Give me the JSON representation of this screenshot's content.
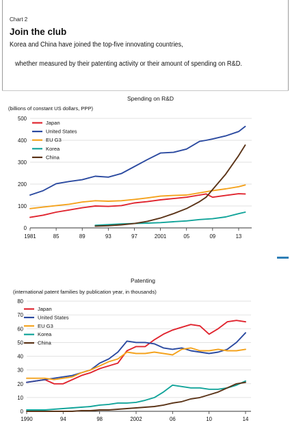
{
  "header": {
    "label": "Chart 2",
    "title": "Join the club",
    "subtitle_line1": "Korea and China have joined the top-five innovating countries,",
    "subtitle_line2": "whether measured by their patenting activity or their amount of spending on R&D."
  },
  "colors": {
    "Japan": "#e0242e",
    "United States": "#2b4aa0",
    "EU G3": "#f4a21c",
    "Korea": "#12a49a",
    "China": "#5b3418",
    "grid": "#d9d9d9",
    "axis": "#333333"
  },
  "chart_data": [
    {
      "type": "line",
      "title": "Spending on R&D",
      "ylabel": "(billions of  constant US dollars, PPP)",
      "ylim": [
        0,
        500
      ],
      "yticks": [
        "0",
        "100",
        "200",
        "300",
        "400",
        "500"
      ],
      "xlim": [
        1981,
        2015
      ],
      "xticks": [
        1981,
        1985,
        1989,
        1993,
        1997,
        2001,
        2005,
        2009,
        2013
      ],
      "xtick_labels": [
        "1981",
        "85",
        "89",
        "93",
        "97",
        "2001",
        "05",
        "09",
        "13"
      ],
      "grid": true,
      "legend": "top-left",
      "series": [
        {
          "name": "Japan",
          "x": [
            1981,
            1983,
            1985,
            1987,
            1989,
            1991,
            1993,
            1995,
            1997,
            1999,
            2001,
            2003,
            2005,
            2007,
            2008,
            2009,
            2011,
            2013,
            2014
          ],
          "y": [
            48,
            58,
            72,
            82,
            92,
            100,
            98,
            102,
            114,
            120,
            128,
            134,
            140,
            150,
            155,
            140,
            148,
            156,
            155
          ]
        },
        {
          "name": "United States",
          "x": [
            1981,
            1983,
            1985,
            1987,
            1989,
            1991,
            1993,
            1995,
            1997,
            1999,
            2001,
            2003,
            2005,
            2007,
            2008,
            2009,
            2011,
            2013,
            2014
          ],
          "y": [
            150,
            170,
            202,
            212,
            220,
            236,
            232,
            248,
            280,
            312,
            342,
            345,
            360,
            395,
            400,
            406,
            420,
            440,
            463
          ]
        },
        {
          "name": "EU G3",
          "x": [
            1981,
            1983,
            1985,
            1987,
            1989,
            1991,
            1993,
            1995,
            1997,
            1999,
            2001,
            2003,
            2005,
            2007,
            2008,
            2009,
            2011,
            2013,
            2014
          ],
          "y": [
            88,
            95,
            102,
            108,
            118,
            124,
            122,
            124,
            130,
            137,
            145,
            148,
            150,
            160,
            165,
            170,
            178,
            188,
            196
          ]
        },
        {
          "name": "Korea",
          "x": [
            1991,
            1993,
            1995,
            1997,
            1999,
            2001,
            2003,
            2005,
            2007,
            2008,
            2009,
            2011,
            2013,
            2014
          ],
          "y": [
            12,
            15,
            18,
            20,
            22,
            24,
            28,
            32,
            38,
            40,
            42,
            50,
            65,
            72
          ]
        },
        {
          "name": "China",
          "x": [
            1991,
            1993,
            1995,
            1997,
            1999,
            2001,
            2003,
            2005,
            2007,
            2008,
            2009,
            2011,
            2013,
            2014
          ],
          "y": [
            8,
            10,
            14,
            20,
            30,
            45,
            65,
            88,
            120,
            140,
            175,
            245,
            330,
            378
          ]
        }
      ]
    },
    {
      "type": "line",
      "title": "Patenting",
      "ylabel": "(international patent families by publication year, in thousands)",
      "ylim": [
        0,
        80
      ],
      "yticks": [
        "0",
        "10",
        "20",
        "30",
        "40",
        "50",
        "60",
        "70",
        "80"
      ],
      "xlim": [
        1990,
        2014.6
      ],
      "xticks": [
        1990,
        1994,
        1998,
        2002,
        2006,
        2010,
        2014
      ],
      "xtick_labels": [
        "1990",
        "94",
        "98",
        "2002",
        "06",
        "10",
        "14"
      ],
      "grid": true,
      "legend": "top-left",
      "series": [
        {
          "name": "Japan",
          "x": [
            1990,
            1991,
            1992,
            1993,
            1994,
            1995,
            1996,
            1997,
            1998,
            1999,
            2000,
            2001,
            2002,
            2003,
            2004,
            2005,
            2006,
            2007,
            2008,
            2009,
            2010,
            2011,
            2012,
            2013,
            2014
          ],
          "y": [
            21,
            22,
            23,
            20,
            20,
            23,
            26,
            28,
            31,
            33,
            35,
            44,
            47,
            47,
            52,
            56,
            59,
            61,
            63,
            62,
            56,
            60,
            65,
            66,
            65
          ]
        },
        {
          "name": "United States",
          "x": [
            1990,
            1991,
            1992,
            1993,
            1994,
            1995,
            1996,
            1997,
            1998,
            1999,
            2000,
            2001,
            2002,
            2003,
            2004,
            2005,
            2006,
            2007,
            2008,
            2009,
            2010,
            2011,
            2012,
            2013,
            2014
          ],
          "y": [
            21,
            22,
            23,
            24,
            25,
            26,
            28,
            30,
            35,
            38,
            43,
            51,
            50,
            50,
            49,
            46,
            45,
            46,
            44,
            43,
            42,
            43,
            45,
            50,
            57
          ]
        },
        {
          "name": "EU G3",
          "x": [
            1990,
            1991,
            1992,
            1993,
            1994,
            1995,
            1996,
            1997,
            1998,
            1999,
            2000,
            2001,
            2002,
            2003,
            2004,
            2005,
            2006,
            2007,
            2008,
            2009,
            2010,
            2011,
            2012,
            2013,
            2014
          ],
          "y": [
            24,
            24,
            24,
            23,
            24,
            25,
            28,
            30,
            33,
            36,
            38,
            43,
            42,
            42,
            43,
            42,
            41,
            45,
            46,
            44,
            44,
            45,
            44,
            44,
            45
          ]
        },
        {
          "name": "Korea",
          "x": [
            1990,
            1991,
            1992,
            1993,
            1994,
            1995,
            1996,
            1997,
            1998,
            1999,
            2000,
            2001,
            2002,
            2003,
            2004,
            2005,
            2006,
            2007,
            2008,
            2009,
            2010,
            2011,
            2012,
            2013,
            2014
          ],
          "y": [
            1,
            1,
            1,
            1.5,
            2,
            2.5,
            3,
            3.5,
            4.5,
            5,
            6,
            6,
            6.5,
            8,
            10,
            14,
            19,
            18,
            17,
            17,
            16,
            16,
            17,
            19,
            22
          ]
        },
        {
          "name": "China",
          "x": [
            1990,
            1991,
            1992,
            1993,
            1994,
            1995,
            1996,
            1997,
            1998,
            1999,
            2000,
            2001,
            2002,
            2003,
            2004,
            2005,
            2006,
            2007,
            2008,
            2009,
            2010,
            2011,
            2012,
            2013,
            2014
          ],
          "y": [
            0,
            0,
            0,
            0,
            0,
            0,
            0.5,
            0.5,
            1,
            1,
            1.5,
            2,
            2.5,
            3,
            3.5,
            4.5,
            6,
            7,
            9,
            10,
            12,
            14,
            17,
            20,
            21
          ]
        }
      ]
    }
  ]
}
